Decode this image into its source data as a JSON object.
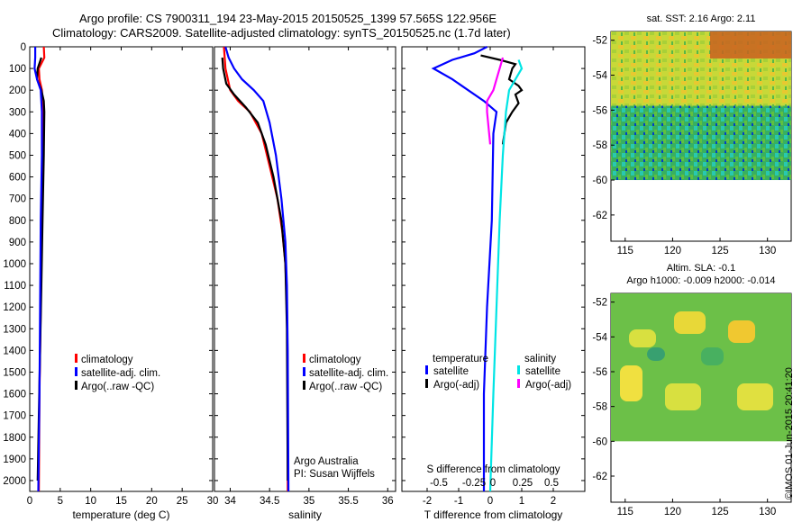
{
  "title_line1": "Argo profile: CS 7900311_194 23-May-2015 20150525_1399 57.565S 122.956E",
  "title_line2": "Climatology: CARS2009. Satellite-adjusted climatology: synTS_20150525.nc (1.7d later)",
  "stamp": "©IMOS 01-Jun-2015 20:41:20",
  "colors": {
    "climatology": "#ff0000",
    "satellite": "#0000ff",
    "argo": "#000000",
    "sal_satellite": "#00e5e5",
    "sal_argo": "#ff00ff"
  },
  "chart_data": [
    {
      "type": "line",
      "xlabel": "temperature (deg C)",
      "xlim": [
        0,
        30
      ],
      "xticks": [
        0,
        5,
        10,
        15,
        20,
        25,
        30
      ],
      "ylim": [
        0,
        2050
      ],
      "yticks": [
        0,
        100,
        200,
        300,
        400,
        500,
        600,
        700,
        800,
        900,
        1000,
        1100,
        1200,
        1300,
        1400,
        1500,
        1600,
        1700,
        1800,
        1900,
        2000
      ],
      "legend": [
        "climatology",
        "satellite-adj. clim.",
        "Argo(..raw -QC)"
      ],
      "legend_placement": "lower-right",
      "series": [
        {
          "name": "climatology",
          "color": "#ff0000",
          "points": [
            [
              2.3,
              0
            ],
            [
              2.4,
              50
            ],
            [
              1.5,
              100
            ],
            [
              1.6,
              150
            ],
            [
              2.0,
              200
            ],
            [
              2.2,
              300
            ],
            [
              2.1,
              500
            ],
            [
              2.0,
              800
            ],
            [
              1.8,
              1200
            ],
            [
              1.6,
              1600
            ],
            [
              1.5,
              2050
            ]
          ]
        },
        {
          "name": "Argo(..raw -QC)",
          "color": "#000000",
          "points": [
            [
              1.9,
              50
            ],
            [
              1.3,
              100
            ],
            [
              1.2,
              150
            ],
            [
              1.9,
              200
            ],
            [
              2.3,
              250
            ],
            [
              2.4,
              300
            ],
            [
              2.3,
              500
            ],
            [
              2.1,
              800
            ],
            [
              1.9,
              1100
            ],
            [
              1.7,
              1400
            ],
            [
              1.5,
              1700
            ],
            [
              1.3,
              2000
            ]
          ]
        },
        {
          "name": "satellite-adj. clim.",
          "color": "#0000ff",
          "points": [
            [
              0.9,
              0
            ],
            [
              0.9,
              50
            ],
            [
              0.8,
              100
            ],
            [
              1.2,
              150
            ],
            [
              1.8,
              200
            ],
            [
              2.0,
              300
            ],
            [
              2.0,
              500
            ],
            [
              1.8,
              800
            ],
            [
              1.7,
              1200
            ],
            [
              1.6,
              1600
            ],
            [
              1.4,
              2050
            ]
          ]
        }
      ]
    },
    {
      "type": "line",
      "xlabel": "salinity",
      "xlim": [
        33.8,
        36.1
      ],
      "xticks": [
        34,
        34.5,
        35,
        35.5,
        36
      ],
      "ylim": [
        0,
        2050
      ],
      "legend": [
        "climatology",
        "satellite-adj. clim.",
        "Argo(..raw -QC)"
      ],
      "legend_placement": "lower-right",
      "annotation": [
        "Argo Australia",
        "PI: Susan Wijffels"
      ],
      "series": [
        {
          "name": "climatology",
          "color": "#ff0000",
          "points": [
            [
              33.92,
              0
            ],
            [
              33.94,
              100
            ],
            [
              34.0,
              200
            ],
            [
              34.1,
              250
            ],
            [
              34.25,
              300
            ],
            [
              34.4,
              400
            ],
            [
              34.5,
              550
            ],
            [
              34.6,
              700
            ],
            [
              34.66,
              850
            ],
            [
              34.7,
              1000
            ],
            [
              34.72,
              1200
            ],
            [
              34.73,
              1500
            ],
            [
              34.73,
              2050
            ]
          ]
        },
        {
          "name": "Argo(..raw -QC)",
          "color": "#000000",
          "points": [
            [
              33.9,
              50
            ],
            [
              33.91,
              100
            ],
            [
              33.95,
              170
            ],
            [
              34.05,
              220
            ],
            [
              34.2,
              280
            ],
            [
              34.35,
              350
            ],
            [
              34.45,
              450
            ],
            [
              34.55,
              600
            ],
            [
              34.65,
              800
            ],
            [
              34.7,
              1000
            ],
            [
              34.72,
              1300
            ],
            [
              34.73,
              2000
            ]
          ]
        },
        {
          "name": "satellite-adj. clim.",
          "color": "#0000ff",
          "points": [
            [
              33.94,
              0
            ],
            [
              33.98,
              50
            ],
            [
              34.05,
              100
            ],
            [
              34.15,
              150
            ],
            [
              34.3,
              200
            ],
            [
              34.42,
              250
            ],
            [
              34.5,
              350
            ],
            [
              34.58,
              500
            ],
            [
              34.65,
              700
            ],
            [
              34.7,
              900
            ],
            [
              34.72,
              1100
            ],
            [
              34.73,
              1400
            ],
            [
              34.74,
              2050
            ]
          ]
        }
      ]
    },
    {
      "type": "line",
      "xlabel": "T difference from climatology",
      "xlim": [
        -2.8,
        3.0
      ],
      "xticks": [
        -2,
        -1,
        0,
        1,
        2
      ],
      "secondary_xlabel": "S difference from climatology",
      "secondary_xticks": [
        "-0.5",
        "-0.25",
        "0",
        "0.25",
        "0.5"
      ],
      "ylim": [
        0,
        2050
      ],
      "legend_groups": [
        {
          "title": "temperature",
          "entries": [
            "satellite",
            "Argo(-adj)"
          ]
        },
        {
          "title": "salinity",
          "entries": [
            "satellite",
            "Argo(-adj)"
          ]
        }
      ],
      "series": [
        {
          "name": "temperature satellite",
          "color": "#0000ff",
          "points": [
            [
              -0.1,
              0
            ],
            [
              -0.5,
              30
            ],
            [
              -1.2,
              60
            ],
            [
              -1.8,
              100
            ],
            [
              -1.2,
              150
            ],
            [
              -0.2,
              250
            ],
            [
              0.2,
              300
            ],
            [
              0.1,
              400
            ],
            [
              0.05,
              800
            ],
            [
              -0.1,
              1200
            ],
            [
              -0.2,
              1600
            ],
            [
              -0.2,
              2050
            ]
          ]
        },
        {
          "name": "temperature Argo(-adj)",
          "color": "#000000",
          "points": [
            [
              -0.3,
              40
            ],
            [
              0.3,
              60
            ],
            [
              0.8,
              80
            ],
            [
              0.7,
              100
            ],
            [
              0.6,
              150
            ],
            [
              0.9,
              180
            ],
            [
              1.0,
              200
            ],
            [
              0.8,
              220
            ],
            [
              0.9,
              260
            ],
            [
              0.7,
              300
            ],
            [
              0.5,
              350
            ],
            [
              0.4,
              450
            ]
          ]
        },
        {
          "name": "salinity satellite",
          "color": "#00e5e5",
          "points": [
            [
              0.9,
              60
            ],
            [
              1.0,
              100
            ],
            [
              0.8,
              150
            ],
            [
              0.6,
              200
            ],
            [
              0.5,
              300
            ],
            [
              0.4,
              500
            ],
            [
              0.3,
              800
            ],
            [
              0.2,
              1200
            ],
            [
              0.1,
              1600
            ],
            [
              0.0,
              2050
            ]
          ]
        },
        {
          "name": "salinity Argo(-adj)",
          "color": "#ff00ff",
          "points": [
            [
              0.4,
              50
            ],
            [
              0.3,
              100
            ],
            [
              0.2,
              150
            ],
            [
              0.1,
              200
            ],
            [
              -0.1,
              250
            ],
            [
              -0.1,
              300
            ],
            [
              0.0,
              450
            ]
          ]
        }
      ]
    },
    {
      "type": "heatmap",
      "title": "sat. SST: 2.16 Argo: 2.11",
      "xlim": [
        113.5,
        132.5
      ],
      "xticks": [
        115,
        120,
        125,
        130
      ],
      "ylim": [
        -63.5,
        -51.5
      ],
      "yticks": [
        -52,
        -54,
        -56,
        -58,
        -60,
        -62
      ],
      "data_extent_lat": [
        -60,
        -51.5
      ]
    },
    {
      "type": "heatmap",
      "title": "Altim. SLA: -0.1",
      "subtitle": "Argo h1000: -0.009 h2000: -0.014",
      "xlim": [
        113.5,
        132.5
      ],
      "xticks": [
        115,
        120,
        125,
        130
      ],
      "ylim": [
        -63.5,
        -51.5
      ],
      "yticks": [
        -52,
        -54,
        -56,
        -58,
        -60,
        -62
      ],
      "data_extent_lat": [
        -60,
        -51.5
      ]
    }
  ]
}
